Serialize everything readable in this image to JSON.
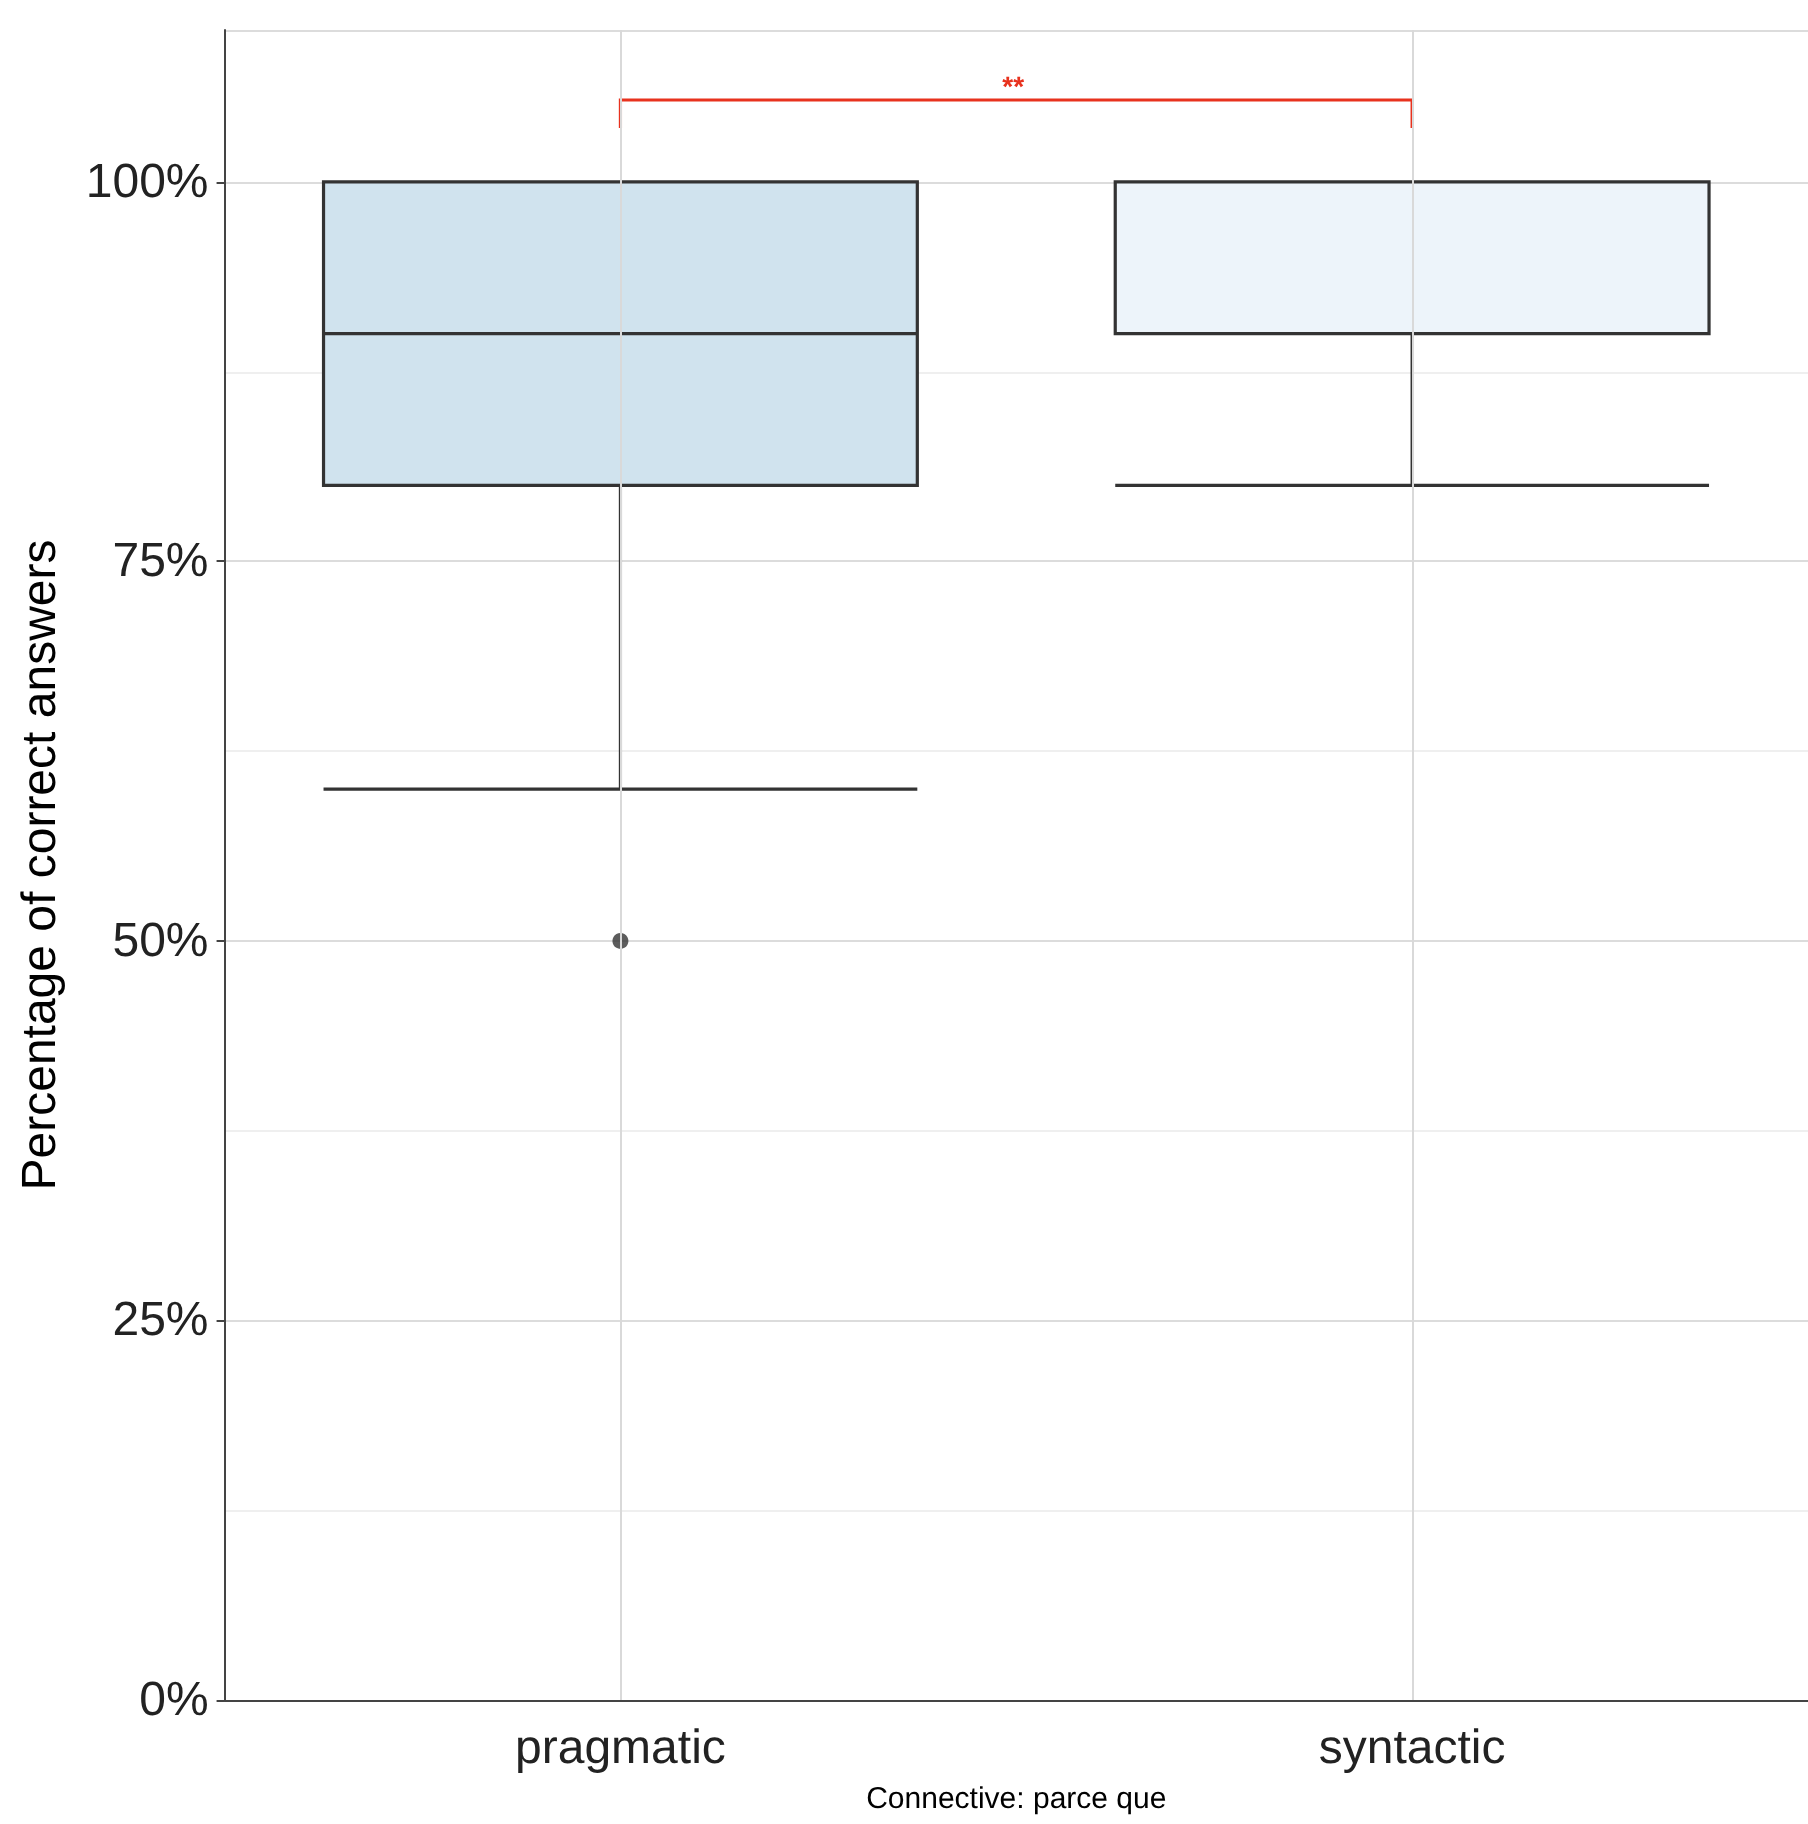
{
  "chart_data": {
    "type": "box",
    "xlabel": "Connective: parce que",
    "ylabel": "Percentage of correct answers",
    "categories": [
      "pragmatic",
      "syntactic"
    ],
    "boxes": [
      {
        "low": 60,
        "q1": 80,
        "median": 90,
        "q3": 100,
        "high": 100,
        "outliers": [
          50
        ]
      },
      {
        "low": 80,
        "q1": 90,
        "median": 100,
        "q3": 100,
        "high": 100
      }
    ],
    "colors": [
      "#d0e3ee",
      "#edf4fa"
    ],
    "ylim": [
      0,
      110
    ],
    "yticks": [
      {
        "value": 0,
        "label": "0%"
      },
      {
        "value": 25,
        "label": "25%"
      },
      {
        "value": 50,
        "label": "50%"
      },
      {
        "value": 75,
        "label": "75%"
      },
      {
        "value": 100,
        "label": "100%"
      }
    ],
    "grid": true,
    "annotations": [
      "**"
    ]
  }
}
